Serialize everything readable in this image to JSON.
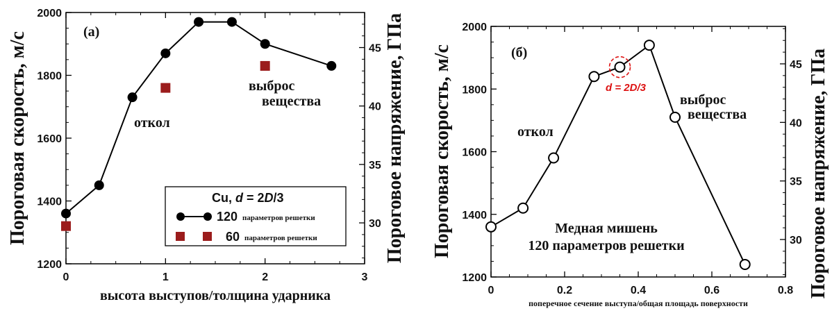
{
  "chart_data": [
    {
      "type": "line",
      "panel_label": "(a)",
      "xlabel": "высота выступов/толщина ударника",
      "ylabel": "Пороговая скорость, м/с",
      "y2label": "Пороговое напряжение, ГПа",
      "xlim": [
        0,
        3
      ],
      "ylim": [
        1200,
        2000
      ],
      "y2lim": [
        26.5,
        48
      ],
      "xticks": [
        "0",
        "1",
        "2",
        "3"
      ],
      "yticks": [
        "1200",
        "1400",
        "1600",
        "1800",
        "2000"
      ],
      "y2ticks": [
        "30",
        "35",
        "40",
        "45"
      ],
      "legend": {
        "title_prefix": "Cu, ",
        "title_math": "d",
        "title_mid": " = 2",
        "title_math2": "D",
        "title_suffix": "/3",
        "placement": "bottom-right",
        "entries": [
          {
            "num": "120",
            "text": "параметров решетки"
          },
          {
            "num": "60",
            "text": "параметров решетки"
          }
        ]
      },
      "series": [
        {
          "name": "120 параметров решетки",
          "marker": "circle",
          "color": "#000000",
          "x": [
            0,
            0.333,
            0.667,
            1.0,
            1.333,
            1.667,
            2.0,
            2.667
          ],
          "y": [
            1360,
            1450,
            1730,
            1870,
            1970,
            1970,
            1900,
            1830
          ]
        },
        {
          "name": "60 параметров решетки",
          "marker": "square",
          "color": "#9b1c1c",
          "x": [
            0,
            1.0,
            2.0
          ],
          "y": [
            1320,
            1760,
            1830
          ]
        }
      ],
      "annotations": [
        {
          "text": "откол",
          "x": 0.67,
          "y": 1640
        },
        {
          "text": "выброс",
          "x": 1.9,
          "y": 1775
        },
        {
          "text": "вещества",
          "x": 2.05,
          "y": 1720
        }
      ]
    },
    {
      "type": "line",
      "panel_label": "(б)",
      "xlabel": "поперечное сечение выступа/общая площадь поверхности",
      "ylabel": "Пороговая скорость, м/с",
      "y2label": "Пороговое напряжение, ГПа",
      "xlim": [
        0,
        0.8
      ],
      "ylim": [
        1200,
        2000
      ],
      "y2lim": [
        26.8,
        48.2
      ],
      "xticks": [
        "0",
        "0.2",
        "0.4",
        "0.6",
        "0.8"
      ],
      "yticks": [
        "1200",
        "1400",
        "1600",
        "1800",
        "2000"
      ],
      "y2ticks": [
        "30",
        "35",
        "40",
        "45"
      ],
      "series": [
        {
          "name": "",
          "marker": "open-circle",
          "color": "#000000",
          "x": [
            0,
            0.087,
            0.17,
            0.28,
            0.35,
            0.43,
            0.5,
            0.69
          ],
          "y": [
            1360,
            1420,
            1580,
            1840,
            1870,
            1940,
            1710,
            1240
          ]
        }
      ],
      "highlight": {
        "x": 0.35,
        "y": 1870,
        "label": "d = 2D/3"
      },
      "annotations": [
        {
          "text": "откол",
          "x": 0.15,
          "y": 1725
        },
        {
          "text": "выброс",
          "x": 0.54,
          "y": 1840
        },
        {
          "text": "вещества",
          "x": 0.57,
          "y": 1780
        },
        {
          "text": "Медная мишень",
          "x": 0.31,
          "y": 1450
        },
        {
          "text": "120 параметров  решетки",
          "x": 0.31,
          "y": 1380
        }
      ]
    }
  ]
}
